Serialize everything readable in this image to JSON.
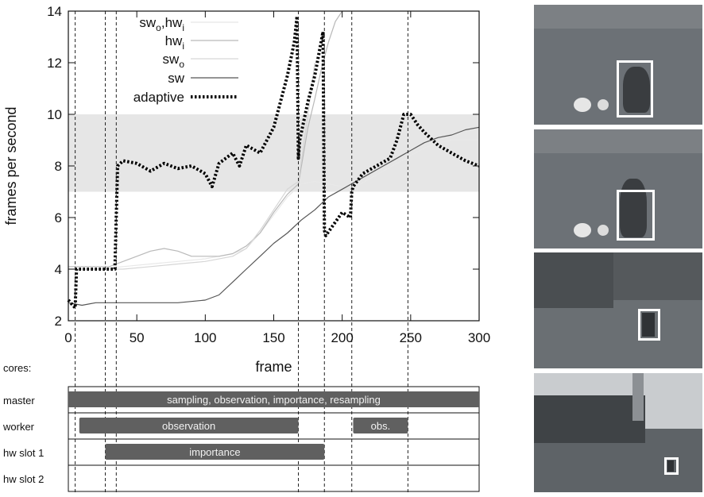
{
  "chart_data": {
    "type": "line",
    "xlabel": "frame",
    "ylabel": "frames per second",
    "xlim": [
      0,
      300
    ],
    "ylim": [
      2,
      14
    ],
    "xticks": [
      0,
      50,
      100,
      150,
      200,
      250,
      300
    ],
    "yticks": [
      2,
      4,
      6,
      8,
      10,
      12,
      14
    ],
    "grid": false,
    "legend_position": "top-center",
    "target_band": [
      7,
      10
    ],
    "markers": [
      5,
      27,
      35,
      168,
      187,
      207,
      248
    ],
    "series": [
      {
        "name": "sw_o,hw_i",
        "color": "#e8e8e8",
        "style": "solid",
        "x": [
          0,
          20,
          40,
          60,
          80,
          100,
          120,
          130,
          140,
          150,
          160,
          170,
          180,
          190,
          200,
          210,
          220,
          230,
          240,
          250,
          260,
          270,
          280,
          290,
          300
        ],
        "y": [
          4.0,
          4.0,
          4.1,
          4.2,
          4.3,
          4.4,
          4.6,
          4.8,
          5.4,
          6.1,
          6.8,
          7.3,
          7.4,
          7.3,
          7.2,
          7.2,
          7.5,
          7.8,
          8.1,
          8.4,
          8.7,
          8.9,
          9.0,
          9.0,
          9.0
        ]
      },
      {
        "name": "hw_i",
        "color": "#b9b9b9",
        "style": "solid",
        "x": [
          0,
          10,
          20,
          30,
          40,
          50,
          60,
          70,
          80,
          90,
          100,
          110,
          120,
          130,
          140,
          150,
          160,
          168,
          175,
          180,
          185,
          190,
          195,
          200
        ],
        "y": [
          4.1,
          4.1,
          4.1,
          4.1,
          4.3,
          4.5,
          4.7,
          4.8,
          4.7,
          4.5,
          4.5,
          4.5,
          4.6,
          4.9,
          5.4,
          6.2,
          6.9,
          7.3,
          9.5,
          10.6,
          11.8,
          12.8,
          13.6,
          14.0
        ]
      },
      {
        "name": "sw_o",
        "color": "#d6d6d6",
        "style": "solid",
        "x": [
          0,
          20,
          40,
          60,
          80,
          100,
          120,
          130,
          140,
          150,
          160,
          168,
          175,
          180
        ],
        "y": [
          4.0,
          4.0,
          4.0,
          4.1,
          4.2,
          4.3,
          4.5,
          4.8,
          5.5,
          6.3,
          7.1,
          7.4,
          10.0,
          12.0
        ]
      },
      {
        "name": "sw",
        "color": "#555555",
        "style": "solid",
        "x": [
          0,
          10,
          20,
          40,
          60,
          80,
          100,
          110,
          120,
          130,
          140,
          150,
          160,
          170,
          180,
          190,
          200,
          210,
          220,
          230,
          240,
          250,
          260,
          270,
          280,
          290,
          300
        ],
        "y": [
          2.7,
          2.6,
          2.7,
          2.7,
          2.7,
          2.7,
          2.8,
          3.0,
          3.5,
          4.0,
          4.5,
          5.0,
          5.4,
          5.9,
          6.3,
          6.8,
          7.1,
          7.4,
          7.7,
          8.0,
          8.3,
          8.6,
          8.9,
          9.1,
          9.2,
          9.4,
          9.5
        ]
      },
      {
        "name": "adaptive",
        "color": "#000000",
        "style": "dotted",
        "x": [
          0,
          5,
          6,
          10,
          20,
          30,
          34,
          36,
          40,
          50,
          60,
          70,
          80,
          90,
          100,
          105,
          110,
          120,
          125,
          130,
          140,
          150,
          155,
          160,
          165,
          167,
          168,
          169,
          175,
          180,
          186,
          187,
          188,
          192,
          200,
          206,
          207,
          208,
          215,
          225,
          235,
          240,
          245,
          250,
          255,
          260,
          270,
          280,
          290,
          300
        ],
        "y": [
          2.8,
          2.5,
          4.0,
          4.0,
          4.0,
          4.0,
          4.0,
          8.0,
          8.2,
          8.1,
          7.8,
          8.1,
          7.9,
          8.0,
          7.7,
          7.2,
          8.1,
          8.5,
          8.0,
          8.8,
          8.5,
          9.5,
          10.5,
          11.5,
          12.8,
          13.8,
          8.3,
          9.0,
          10.5,
          11.5,
          13.2,
          5.5,
          5.3,
          5.6,
          6.2,
          6.0,
          7.0,
          7.2,
          7.7,
          8.0,
          8.3,
          9.0,
          10.0,
          10.0,
          9.6,
          9.3,
          8.8,
          8.5,
          8.2,
          8.0
        ]
      }
    ],
    "cores": {
      "title": "cores:",
      "rows": [
        {
          "label": "master",
          "bars": [
            {
              "start": 0,
              "end": 300,
              "label": "sampling, observation, importance, resampling"
            }
          ]
        },
        {
          "label": "worker",
          "bars": [
            {
              "start": 8,
              "end": 168,
              "label": "observation"
            },
            {
              "start": 208,
              "end": 248,
              "label": "obs."
            }
          ]
        },
        {
          "label": "hw slot 1",
          "bars": [
            {
              "start": 27,
              "end": 187,
              "label": "importance"
            }
          ]
        },
        {
          "label": "hw slot 2",
          "bars": []
        }
      ],
      "bar_color": "#606060"
    }
  },
  "legend": [
    {
      "key": "sw_o,hw_i",
      "base1": "sw",
      "sub1": "o",
      "mid": ",hw",
      "sub2": "i"
    },
    {
      "key": "hw_i",
      "base1": "hw",
      "sub1": "i",
      "mid": "",
      "sub2": ""
    },
    {
      "key": "sw_o",
      "base1": "sw",
      "sub1": "o",
      "mid": "",
      "sub2": ""
    },
    {
      "key": "sw",
      "base1": "sw",
      "sub1": "",
      "mid": "",
      "sub2": ""
    },
    {
      "key": "adaptive",
      "base1": "adaptive",
      "sub1": "",
      "mid": "",
      "sub2": ""
    }
  ],
  "thumbnails": [
    {
      "name": "thumb-1",
      "sky": "#7c8084",
      "field": "#6c7176"
    },
    {
      "name": "thumb-2",
      "sky": "#7c8084",
      "field": "#6c7176"
    },
    {
      "name": "thumb-3",
      "sky": "#55595c",
      "field": "#6a6f73"
    },
    {
      "name": "thumb-4",
      "sky": "#c9cccf",
      "field": "#5e6367"
    }
  ]
}
